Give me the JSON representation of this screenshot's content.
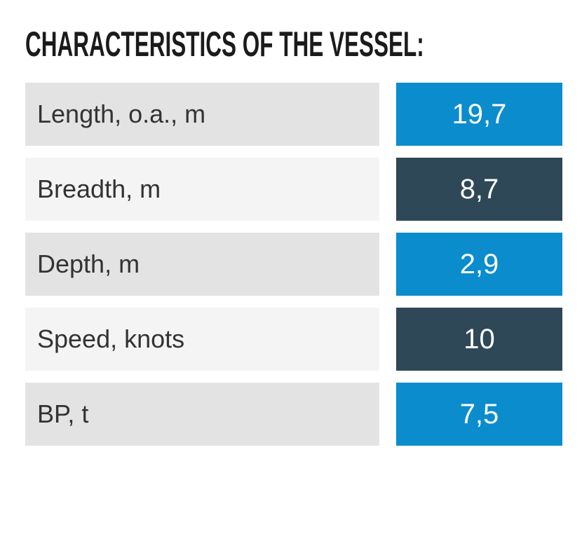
{
  "page": {
    "background": "#ffffff"
  },
  "header": {
    "title": "CHARACTERISTICS OF THE VESSEL:"
  },
  "colors": {
    "accent_blue": "#0b8ccd",
    "dark_slate": "#2f4857",
    "row_label_gray": "#e3e3e3",
    "row_label_light": "#f5f4f4",
    "title_text": "#1b1b1b",
    "label_text": "#333333",
    "value_text": "#ffffff"
  },
  "chart_data": {
    "type": "table",
    "title": "CHARACTERISTICS OF THE VESSEL:",
    "rows": [
      {
        "label": "Length, o.a., m",
        "value": "19,7",
        "label_bg": "#e3e3e3",
        "value_bg": "#0b8ccd"
      },
      {
        "label": "Breadth, m",
        "value": "8,7",
        "label_bg": "#f5f4f4",
        "value_bg": "#2f4857"
      },
      {
        "label": "Depth, m",
        "value": "2,9",
        "label_bg": "#e3e3e3",
        "value_bg": "#0b8ccd"
      },
      {
        "label": "Speed, knots",
        "value": "10",
        "label_bg": "#f5f4f4",
        "value_bg": "#2f4857"
      },
      {
        "label": "BP, t",
        "value": "7,5",
        "label_bg": "#e3e3e3",
        "value_bg": "#0b8ccd"
      }
    ]
  }
}
